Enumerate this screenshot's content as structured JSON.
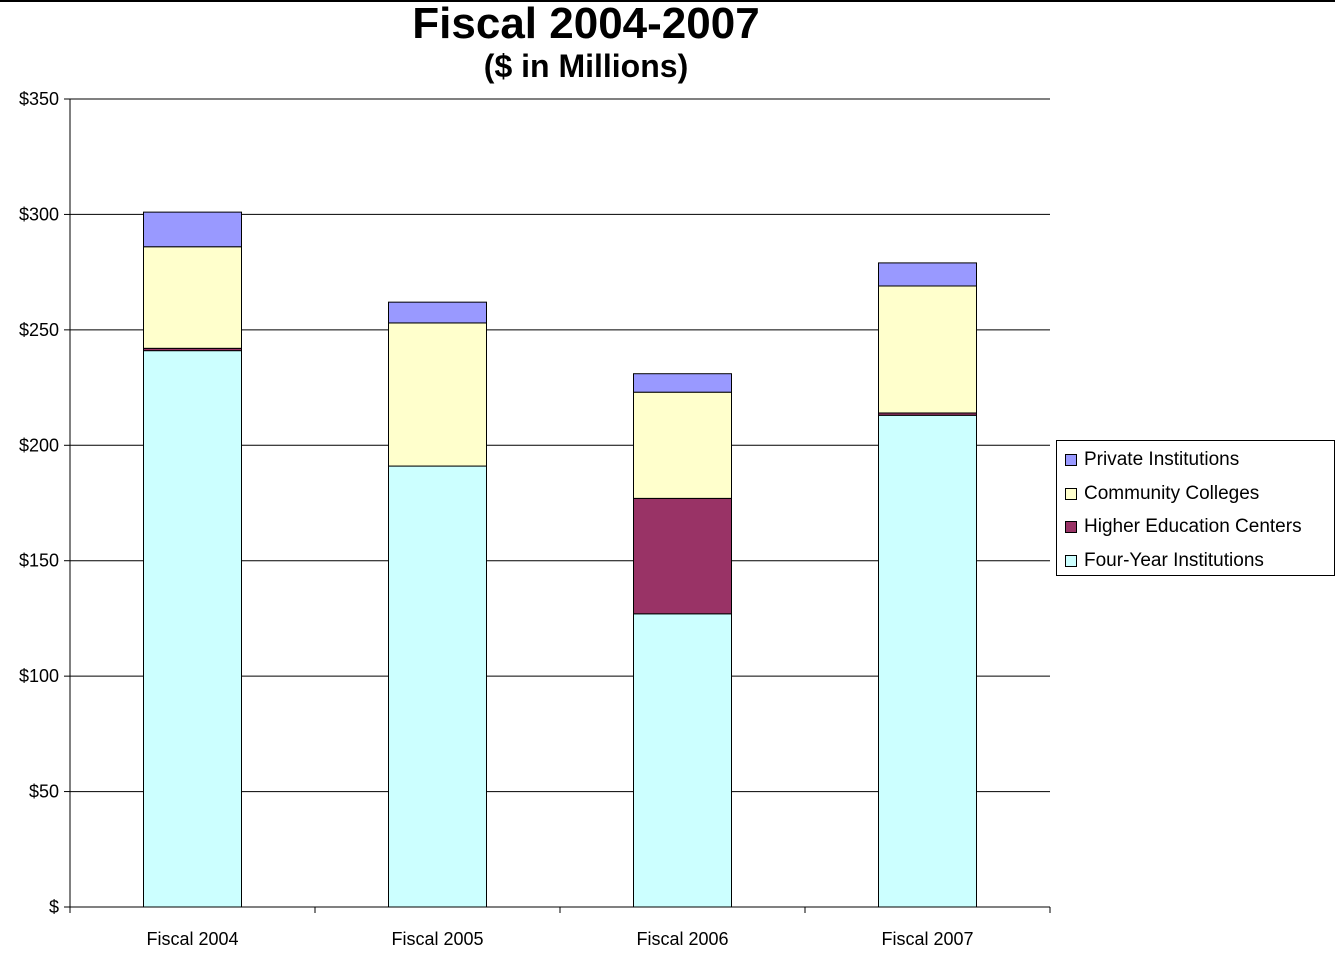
{
  "chart_data": {
    "type": "bar",
    "stacked": true,
    "title": "Fiscal 2004-2007",
    "subtitle": "($ in Millions)",
    "categories": [
      "Fiscal 2004",
      "Fiscal 2005",
      "Fiscal 2006",
      "Fiscal 2007"
    ],
    "ylim": [
      0,
      350
    ],
    "yticks": [
      0,
      50,
      100,
      150,
      200,
      250,
      300,
      350
    ],
    "ytick_labels": [
      "$",
      "$50",
      "$100",
      "$150",
      "$200",
      "$250",
      "$300",
      "$350"
    ],
    "grid": true,
    "legend_position": "right",
    "series": [
      {
        "name": "Four-Year Institutions",
        "color": "#CCFFFF",
        "values": [
          241,
          191,
          127,
          213
        ]
      },
      {
        "name": "Higher Education Centers",
        "color": "#993366",
        "values": [
          1,
          0,
          50,
          1
        ]
      },
      {
        "name": "Community Colleges",
        "color": "#FFFFCC",
        "values": [
          44,
          62,
          46,
          55
        ]
      },
      {
        "name": "Private Institutions",
        "color": "#9999FF",
        "values": [
          15,
          9,
          8,
          10
        ]
      }
    ],
    "legend_order": [
      "Private Institutions",
      "Community Colleges",
      "Higher Education Centers",
      "Four-Year Institutions"
    ]
  }
}
